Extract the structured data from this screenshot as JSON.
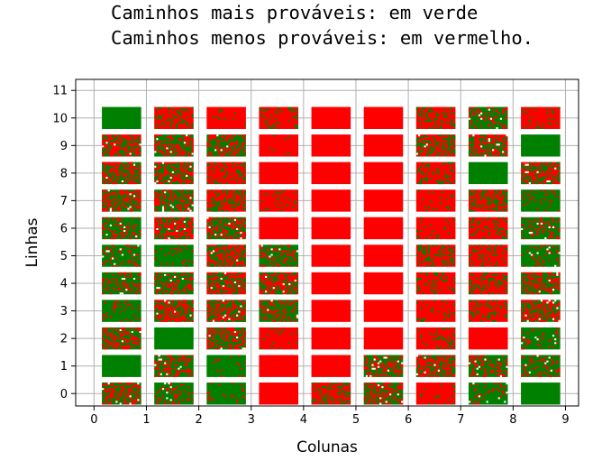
{
  "caption": {
    "line1": "Caminhos mais prováveis: em verde",
    "line2": "Caminhos menos prováveis: em vermelho."
  },
  "colors": {
    "likely": "#008000",
    "unlikely": "#ff0000",
    "grid": "#b0b0b0",
    "frame": "#000000"
  },
  "chart_data": {
    "type": "heatmap",
    "title": "",
    "xlabel": "Colunas",
    "ylabel": "Linhas",
    "xlim": [
      -0.35,
      9.25
    ],
    "ylim": [
      -0.45,
      11.4
    ],
    "xticks": [
      0,
      1,
      2,
      3,
      4,
      5,
      6,
      7,
      8,
      9
    ],
    "yticks": [
      0,
      1,
      2,
      3,
      4,
      5,
      6,
      7,
      8,
      9,
      10,
      11
    ],
    "grid": true,
    "columns": [
      0,
      1,
      2,
      3,
      4,
      5,
      6,
      7,
      8
    ],
    "rows": [
      0,
      1,
      2,
      3,
      4,
      5,
      6,
      7,
      8,
      9,
      10
    ],
    "green_fraction_by_row": [
      [
        0.55,
        0.8,
        0.9,
        0.0,
        0.3,
        0.55,
        0.05,
        0.85,
        1.0
      ],
      [
        1.0,
        0.6,
        0.95,
        0.0,
        0.0,
        0.6,
        0.4,
        0.7,
        0.8
      ],
      [
        0.55,
        1.0,
        0.5,
        0.05,
        0.0,
        0.0,
        0.15,
        0.0,
        0.85
      ],
      [
        0.9,
        0.5,
        0.45,
        0.6,
        0.0,
        0.0,
        0.15,
        0.2,
        0.5
      ],
      [
        0.75,
        0.65,
        0.45,
        0.4,
        0.0,
        0.0,
        0.2,
        0.3,
        0.6
      ],
      [
        0.8,
        0.9,
        0.4,
        0.7,
        0.0,
        0.0,
        0.3,
        0.2,
        0.85
      ],
      [
        0.75,
        0.4,
        0.6,
        0.0,
        0.0,
        0.0,
        0.1,
        0.2,
        0.75
      ],
      [
        0.55,
        0.6,
        0.3,
        0.1,
        0.0,
        0.0,
        0.1,
        0.35,
        0.9
      ],
      [
        0.55,
        0.45,
        0.3,
        0.0,
        0.0,
        0.0,
        0.2,
        1.0,
        0.45
      ],
      [
        0.4,
        0.55,
        0.6,
        0.05,
        0.0,
        0.0,
        0.4,
        0.4,
        1.0
      ],
      [
        1.0,
        0.25,
        0.05,
        0.2,
        0.0,
        0.0,
        0.3,
        0.75,
        0.1
      ]
    ]
  }
}
